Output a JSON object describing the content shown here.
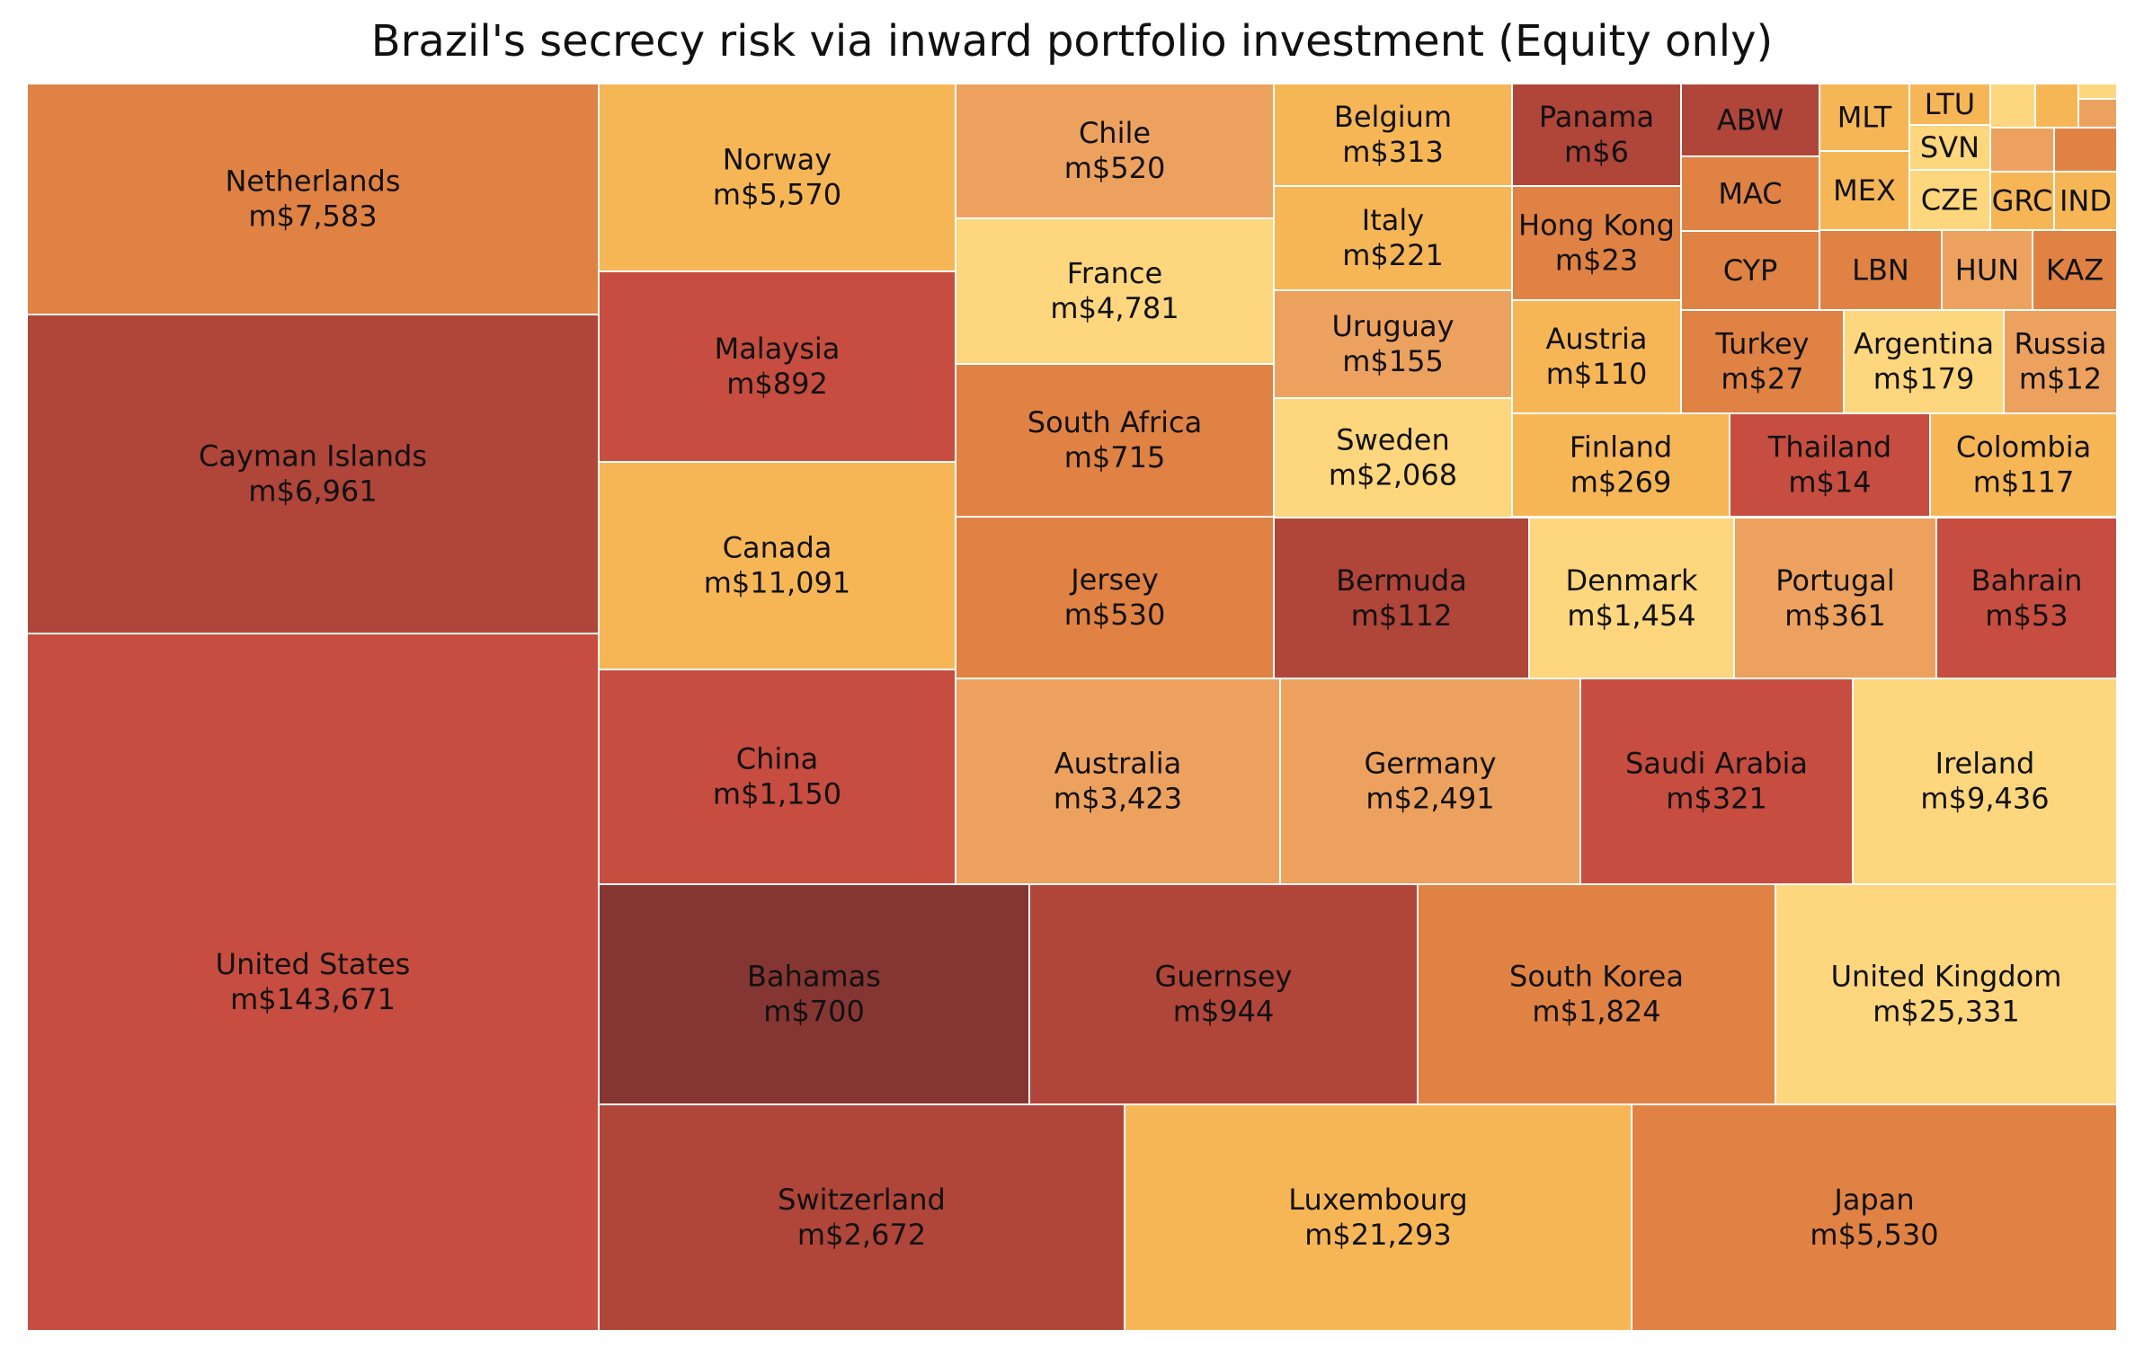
{
  "chart_data": {
    "type": "treemap",
    "title": "Brazil's secrecy risk via inward portfolio investment (Equity only)",
    "tiles": [
      {
        "label": "Netherlands",
        "value_label": "m$7,583",
        "value": 7583,
        "color": "#e08244"
      },
      {
        "label": "Cayman Islands",
        "value_label": "m$6,961",
        "value": 6961,
        "color": "#b04539"
      },
      {
        "label": "United States",
        "value_label": "m$143,671",
        "value": 143671,
        "color": "#c64d3f"
      },
      {
        "label": "Norway",
        "value_label": "m$5,570",
        "value": 5570,
        "color": "#f7b656"
      },
      {
        "label": "Malaysia",
        "value_label": "m$892",
        "value": 892,
        "color": "#c64d3f"
      },
      {
        "label": "Canada",
        "value_label": "m$11,091",
        "value": 11091,
        "color": "#f7b656"
      },
      {
        "label": "China",
        "value_label": "m$1,150",
        "value": 1150,
        "color": "#c64d3f"
      },
      {
        "label": "Chile",
        "value_label": "m$520",
        "value": 520,
        "color": "#eda15f"
      },
      {
        "label": "France",
        "value_label": "m$4,781",
        "value": 4781,
        "color": "#fed67d"
      },
      {
        "label": "South Africa",
        "value_label": "m$715",
        "value": 715,
        "color": "#e08244"
      },
      {
        "label": "Jersey",
        "value_label": "m$530",
        "value": 530,
        "color": "#e08244"
      },
      {
        "label": "Belgium",
        "value_label": "m$313",
        "value": 313,
        "color": "#f7b656"
      },
      {
        "label": "Italy",
        "value_label": "m$221",
        "value": 221,
        "color": "#f7b656"
      },
      {
        "label": "Uruguay",
        "value_label": "m$155",
        "value": 155,
        "color": "#eda15f"
      },
      {
        "label": "Sweden",
        "value_label": "m$2,068",
        "value": 2068,
        "color": "#fed67d"
      },
      {
        "label": "Panama",
        "value_label": "m$6",
        "value": 6,
        "color": "#b04539"
      },
      {
        "label": "Hong Kong",
        "value_label": "m$23",
        "value": 23,
        "color": "#e08244"
      },
      {
        "label": "Austria",
        "value_label": "m$110",
        "value": 110,
        "color": "#f7b656"
      },
      {
        "label": "ABW",
        "value_label": "",
        "color": "#b04539"
      },
      {
        "label": "MLT",
        "value_label": "",
        "color": "#f7b656"
      },
      {
        "label": "LTU",
        "value_label": "",
        "color": "#f7b656"
      },
      {
        "label": "",
        "value_label": "",
        "color": "#fed67d"
      },
      {
        "label": "",
        "value_label": "",
        "color": "#f7b656"
      },
      {
        "label": "",
        "value_label": "",
        "color": "#fed67d"
      },
      {
        "label": "",
        "value_label": "",
        "color": "#eda15f"
      },
      {
        "label": "SVN",
        "value_label": "",
        "color": "#fed67d"
      },
      {
        "label": "",
        "value_label": "",
        "color": "#eda15f"
      },
      {
        "label": "",
        "value_label": "",
        "color": "#e08244"
      },
      {
        "label": "MAC",
        "value_label": "",
        "color": "#e08244"
      },
      {
        "label": "MEX",
        "value_label": "",
        "color": "#f7b656"
      },
      {
        "label": "CZE",
        "value_label": "",
        "color": "#fed67d"
      },
      {
        "label": "GRC",
        "value_label": "",
        "color": "#f7b656"
      },
      {
        "label": "IND",
        "value_label": "",
        "color": "#f7b656"
      },
      {
        "label": "CYP",
        "value_label": "",
        "color": "#e08244"
      },
      {
        "label": "LBN",
        "value_label": "",
        "color": "#e08244"
      },
      {
        "label": "HUN",
        "value_label": "",
        "color": "#eda15f"
      },
      {
        "label": "KAZ",
        "value_label": "",
        "color": "#e08244"
      },
      {
        "label": "Turkey",
        "value_label": "m$27",
        "value": 27,
        "color": "#e08244"
      },
      {
        "label": "Argentina",
        "value_label": "m$179",
        "value": 179,
        "color": "#fed67d"
      },
      {
        "label": "Russia",
        "value_label": "m$12",
        "value": 12,
        "color": "#eda15f"
      },
      {
        "label": "Finland",
        "value_label": "m$269",
        "value": 269,
        "color": "#f7b656"
      },
      {
        "label": "Thailand",
        "value_label": "m$14",
        "value": 14,
        "color": "#c64d3f"
      },
      {
        "label": "Colombia",
        "value_label": "m$117",
        "value": 117,
        "color": "#f7b656"
      },
      {
        "label": "Bermuda",
        "value_label": "m$112",
        "value": 112,
        "color": "#b04539"
      },
      {
        "label": "Denmark",
        "value_label": "m$1,454",
        "value": 1454,
        "color": "#fed67d"
      },
      {
        "label": "Portugal",
        "value_label": "m$361",
        "value": 361,
        "color": "#eda15f"
      },
      {
        "label": "Bahrain",
        "value_label": "m$53",
        "value": 53,
        "color": "#c64d3f"
      },
      {
        "label": "Australia",
        "value_label": "m$3,423",
        "value": 3423,
        "color": "#eda15f"
      },
      {
        "label": "Germany",
        "value_label": "m$2,491",
        "value": 2491,
        "color": "#eda15f"
      },
      {
        "label": "Saudi Arabia",
        "value_label": "m$321",
        "value": 321,
        "color": "#c64d3f"
      },
      {
        "label": "Ireland",
        "value_label": "m$9,436",
        "value": 9436,
        "color": "#fed67d"
      },
      {
        "label": "Bahamas",
        "value_label": "m$700",
        "value": 700,
        "color": "#863632"
      },
      {
        "label": "Guernsey",
        "value_label": "m$944",
        "value": 944,
        "color": "#b04539"
      },
      {
        "label": "South Korea",
        "value_label": "m$1,824",
        "value": 1824,
        "color": "#e08244"
      },
      {
        "label": "United Kingdom",
        "value_label": "m$25,331",
        "value": 25331,
        "color": "#fed67d"
      },
      {
        "label": "Switzerland",
        "value_label": "m$2,672",
        "value": 2672,
        "color": "#b04539"
      },
      {
        "label": "Luxembourg",
        "value_label": "m$21,293",
        "value": 21293,
        "color": "#f7b656"
      },
      {
        "label": "Japan",
        "value_label": "m$5,530",
        "value": 5530,
        "color": "#e08244"
      }
    ]
  }
}
